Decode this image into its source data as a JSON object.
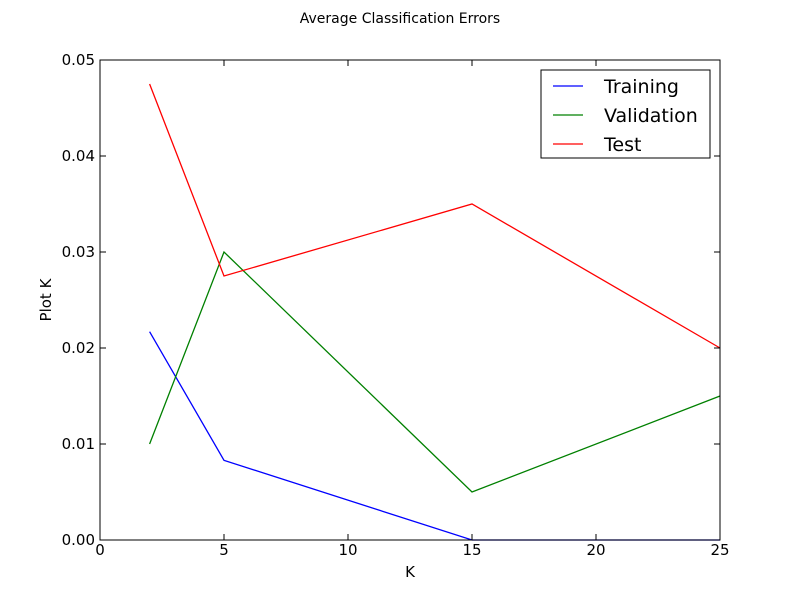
{
  "chart_data": {
    "type": "line",
    "title": "Average Classification Errors",
    "xlabel": "K",
    "ylabel": "Plot K",
    "xlim": [
      0,
      25
    ],
    "ylim": [
      0,
      0.05
    ],
    "xticks": [
      0,
      5,
      10,
      15,
      20,
      25
    ],
    "xtick_labels": [
      "0",
      "5",
      "10",
      "15",
      "20",
      "25"
    ],
    "yticks": [
      0,
      0.01,
      0.02,
      0.03,
      0.04,
      0.05
    ],
    "ytick_labels": [
      "0.00",
      "0.01",
      "0.02",
      "0.03",
      "0.04",
      "0.05"
    ],
    "grid": false,
    "legend_position": "top-right",
    "x": [
      2,
      5,
      15,
      25
    ],
    "series": [
      {
        "name": "Training",
        "color": "#0000ff",
        "values": [
          0.0217,
          0.0083,
          0.0,
          0.0
        ]
      },
      {
        "name": "Validation",
        "color": "#008000",
        "values": [
          0.01,
          0.03,
          0.005,
          0.015
        ]
      },
      {
        "name": "Test",
        "color": "#ff0000",
        "values": [
          0.0475,
          0.0275,
          0.035,
          0.02
        ]
      }
    ]
  }
}
